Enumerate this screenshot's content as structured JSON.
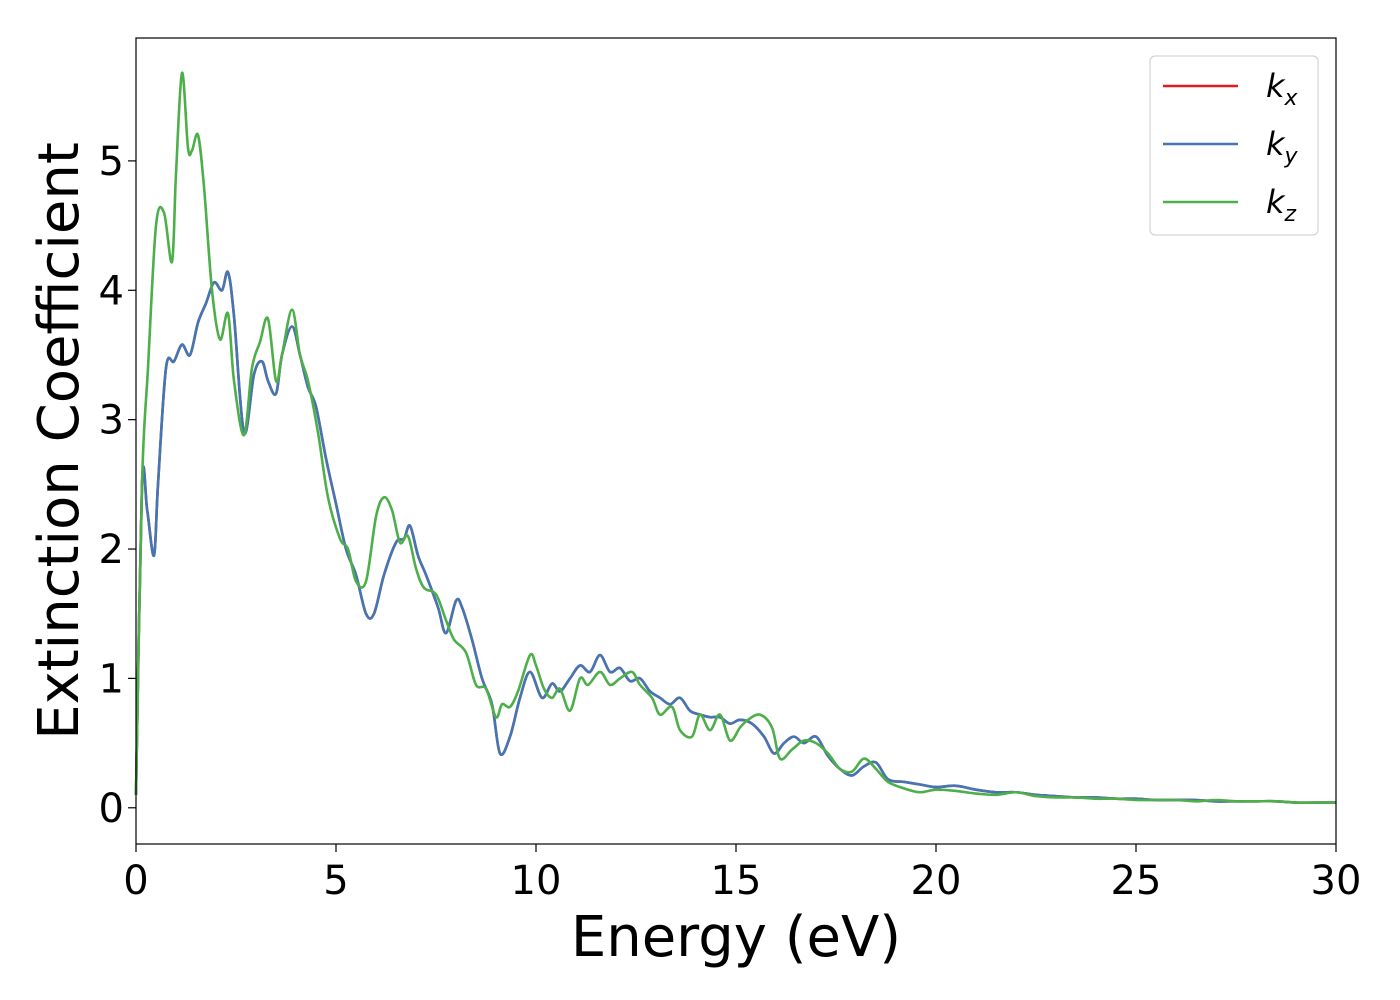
{
  "chart_data": {
    "type": "line",
    "xlabel": "Energy (eV)",
    "ylabel": "Extinction Coefficient",
    "xlim": [
      0,
      30
    ],
    "ylim": [
      -0.28,
      5.95
    ],
    "xticks": [
      0,
      5,
      10,
      15,
      20,
      25,
      30
    ],
    "xtick_labels": [
      "0",
      "5",
      "10",
      "15",
      "20",
      "25",
      "30"
    ],
    "yticks": [
      0,
      1,
      2,
      3,
      4,
      5
    ],
    "ytick_labels": [
      "0",
      "1",
      "2",
      "3",
      "4",
      "5"
    ],
    "grid": false,
    "legend_position": "top-right",
    "series": [
      {
        "name": "k_x",
        "label_base": "k",
        "label_sub": "x",
        "color": "#e41a1c",
        "x": [
          0,
          0.15,
          0.28,
          0.45,
          0.55,
          0.75,
          0.95,
          1.15,
          1.35,
          1.55,
          1.75,
          1.95,
          2.15,
          2.3,
          2.45,
          2.7,
          2.95,
          3.15,
          3.3,
          3.5,
          3.65,
          3.9,
          4.1,
          4.3,
          4.5,
          4.75,
          5.0,
          5.25,
          5.5,
          5.75,
          5.95,
          6.2,
          6.5,
          6.7,
          6.85,
          7.05,
          7.25,
          7.55,
          7.75,
          8.0,
          8.15,
          8.4,
          8.65,
          8.9,
          9.1,
          9.35,
          9.6,
          9.85,
          10.15,
          10.4,
          10.6,
          10.85,
          11.1,
          11.35,
          11.6,
          11.85,
          12.1,
          12.35,
          12.6,
          12.85,
          13.1,
          13.35,
          13.6,
          13.85,
          14.1,
          14.35,
          14.6,
          14.85,
          15.1,
          15.4,
          15.7,
          15.95,
          16.2,
          16.45,
          16.7,
          17.0,
          17.3,
          17.6,
          17.9,
          18.2,
          18.5,
          18.8,
          19.2,
          19.6,
          20.0,
          20.5,
          21.0,
          21.5,
          22.0,
          22.5,
          23.0,
          23.5,
          24.0,
          24.5,
          25.0,
          25.5,
          26.0,
          26.5,
          27.0,
          27.5,
          28.0,
          28.5,
          29.0,
          29.5,
          30.0
        ],
        "y": [
          0.1,
          2.5,
          2.3,
          1.95,
          2.5,
          3.4,
          3.45,
          3.58,
          3.5,
          3.75,
          3.9,
          4.06,
          4.0,
          4.14,
          3.8,
          2.9,
          3.35,
          3.45,
          3.3,
          3.2,
          3.5,
          3.72,
          3.5,
          3.25,
          3.1,
          2.7,
          2.35,
          2.0,
          1.8,
          1.5,
          1.5,
          1.8,
          2.05,
          2.08,
          2.18,
          1.95,
          1.8,
          1.55,
          1.35,
          1.6,
          1.55,
          1.3,
          1.0,
          0.8,
          0.42,
          0.55,
          0.85,
          1.05,
          0.85,
          0.96,
          0.9,
          1.0,
          1.1,
          1.05,
          1.18,
          1.05,
          1.08,
          0.98,
          1.0,
          0.9,
          0.85,
          0.8,
          0.85,
          0.75,
          0.72,
          0.7,
          0.7,
          0.65,
          0.68,
          0.65,
          0.55,
          0.42,
          0.5,
          0.55,
          0.5,
          0.55,
          0.4,
          0.3,
          0.25,
          0.32,
          0.35,
          0.22,
          0.2,
          0.18,
          0.16,
          0.17,
          0.14,
          0.12,
          0.12,
          0.1,
          0.09,
          0.08,
          0.08,
          0.07,
          0.07,
          0.06,
          0.06,
          0.06,
          0.05,
          0.05,
          0.05,
          0.05,
          0.04,
          0.04,
          0.04
        ]
      },
      {
        "name": "k_y",
        "label_base": "k",
        "label_sub": "y",
        "color": "#4277b6",
        "x": [
          0,
          0.15,
          0.28,
          0.45,
          0.55,
          0.75,
          0.95,
          1.15,
          1.35,
          1.55,
          1.75,
          1.95,
          2.15,
          2.3,
          2.45,
          2.7,
          2.95,
          3.15,
          3.3,
          3.5,
          3.65,
          3.9,
          4.1,
          4.3,
          4.5,
          4.75,
          5.0,
          5.25,
          5.5,
          5.75,
          5.95,
          6.2,
          6.5,
          6.7,
          6.85,
          7.05,
          7.25,
          7.55,
          7.75,
          8.0,
          8.15,
          8.4,
          8.65,
          8.9,
          9.1,
          9.35,
          9.6,
          9.85,
          10.15,
          10.4,
          10.6,
          10.85,
          11.1,
          11.35,
          11.6,
          11.85,
          12.1,
          12.35,
          12.6,
          12.85,
          13.1,
          13.35,
          13.6,
          13.85,
          14.1,
          14.35,
          14.6,
          14.85,
          15.1,
          15.4,
          15.7,
          15.95,
          16.2,
          16.45,
          16.7,
          17.0,
          17.3,
          17.6,
          17.9,
          18.2,
          18.5,
          18.8,
          19.2,
          19.6,
          20.0,
          20.5,
          21.0,
          21.5,
          22.0,
          22.5,
          23.0,
          23.5,
          24.0,
          24.5,
          25.0,
          25.5,
          26.0,
          26.5,
          27.0,
          27.5,
          28.0,
          28.5,
          29.0,
          29.5,
          30.0
        ],
        "y": [
          0.1,
          2.5,
          2.3,
          1.95,
          2.5,
          3.4,
          3.45,
          3.58,
          3.5,
          3.75,
          3.9,
          4.06,
          4.0,
          4.14,
          3.8,
          2.9,
          3.35,
          3.45,
          3.3,
          3.2,
          3.5,
          3.72,
          3.5,
          3.25,
          3.1,
          2.7,
          2.35,
          2.0,
          1.8,
          1.5,
          1.5,
          1.8,
          2.05,
          2.08,
          2.18,
          1.95,
          1.8,
          1.55,
          1.35,
          1.6,
          1.55,
          1.3,
          1.0,
          0.8,
          0.42,
          0.55,
          0.85,
          1.05,
          0.85,
          0.96,
          0.9,
          1.0,
          1.1,
          1.05,
          1.18,
          1.05,
          1.08,
          0.98,
          1.0,
          0.9,
          0.85,
          0.8,
          0.85,
          0.75,
          0.72,
          0.7,
          0.7,
          0.65,
          0.68,
          0.65,
          0.55,
          0.42,
          0.5,
          0.55,
          0.5,
          0.55,
          0.4,
          0.3,
          0.25,
          0.32,
          0.35,
          0.22,
          0.2,
          0.18,
          0.16,
          0.17,
          0.14,
          0.12,
          0.12,
          0.1,
          0.09,
          0.08,
          0.08,
          0.07,
          0.07,
          0.06,
          0.06,
          0.06,
          0.05,
          0.05,
          0.05,
          0.05,
          0.04,
          0.04,
          0.04
        ]
      },
      {
        "name": "k_z",
        "label_base": "k",
        "label_sub": "z",
        "color": "#4daf4a",
        "x": [
          0,
          0.15,
          0.3,
          0.5,
          0.7,
          0.9,
          1.0,
          1.15,
          1.3,
          1.4,
          1.55,
          1.7,
          1.9,
          2.1,
          2.3,
          2.45,
          2.7,
          2.9,
          3.1,
          3.3,
          3.5,
          3.65,
          3.9,
          4.1,
          4.3,
          4.55,
          4.8,
          5.1,
          5.3,
          5.5,
          5.75,
          6.0,
          6.2,
          6.4,
          6.6,
          6.8,
          7.0,
          7.2,
          7.5,
          7.75,
          7.95,
          8.25,
          8.5,
          8.75,
          9.0,
          9.15,
          9.35,
          9.55,
          9.85,
          10.0,
          10.2,
          10.4,
          10.6,
          10.85,
          11.1,
          11.3,
          11.6,
          11.85,
          12.1,
          12.4,
          12.6,
          12.9,
          13.1,
          13.4,
          13.6,
          13.9,
          14.1,
          14.35,
          14.6,
          14.85,
          15.1,
          15.3,
          15.6,
          15.9,
          16.1,
          16.4,
          16.7,
          17.0,
          17.3,
          17.6,
          17.9,
          18.2,
          18.5,
          18.8,
          19.2,
          19.6,
          20.0,
          20.5,
          21.0,
          21.5,
          22.0,
          22.5,
          23.0,
          23.5,
          24.0,
          24.5,
          25.0,
          25.5,
          26.0,
          26.5,
          27.0,
          27.5,
          28.0,
          28.5,
          29.0,
          29.5,
          30.0
        ],
        "y": [
          0.1,
          2.5,
          3.4,
          4.5,
          4.6,
          4.22,
          4.9,
          5.68,
          5.1,
          5.08,
          5.2,
          4.8,
          4.0,
          3.62,
          3.82,
          3.3,
          2.88,
          3.4,
          3.6,
          3.78,
          3.3,
          3.5,
          3.85,
          3.5,
          3.3,
          2.9,
          2.4,
          2.08,
          2.0,
          1.75,
          1.75,
          2.25,
          2.4,
          2.3,
          2.05,
          2.1,
          1.85,
          1.7,
          1.65,
          1.45,
          1.3,
          1.2,
          0.95,
          0.92,
          0.7,
          0.8,
          0.78,
          0.9,
          1.18,
          1.1,
          0.92,
          0.85,
          0.92,
          0.75,
          1.0,
          0.95,
          1.05,
          0.95,
          1.0,
          1.05,
          0.95,
          0.85,
          0.72,
          0.78,
          0.6,
          0.55,
          0.72,
          0.6,
          0.72,
          0.52,
          0.62,
          0.68,
          0.72,
          0.62,
          0.38,
          0.45,
          0.52,
          0.5,
          0.42,
          0.3,
          0.28,
          0.38,
          0.3,
          0.2,
          0.15,
          0.12,
          0.14,
          0.13,
          0.11,
          0.1,
          0.12,
          0.09,
          0.08,
          0.08,
          0.07,
          0.07,
          0.06,
          0.06,
          0.06,
          0.05,
          0.06,
          0.05,
          0.05,
          0.05,
          0.04,
          0.04,
          0.04
        ]
      }
    ]
  }
}
